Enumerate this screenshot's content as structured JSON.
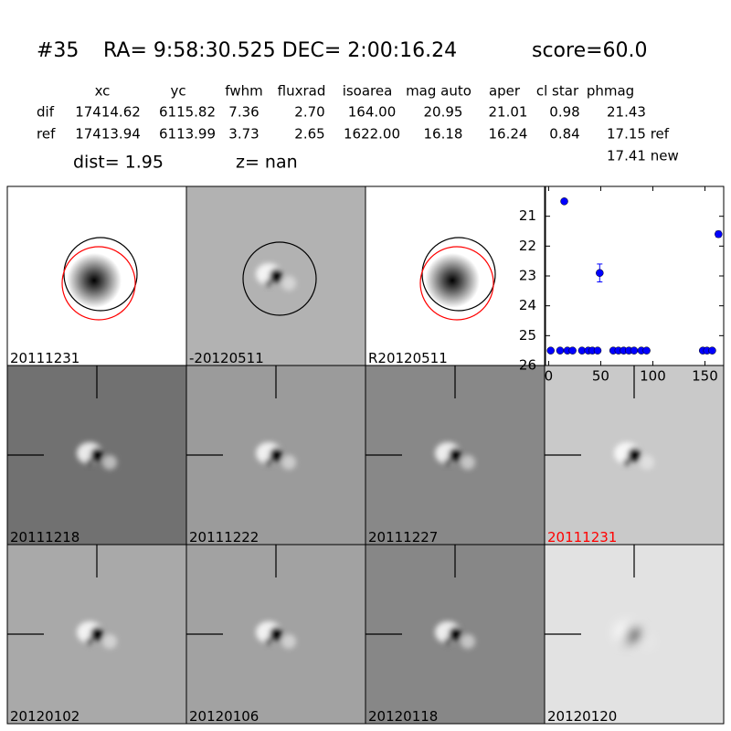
{
  "header": {
    "id": "#35",
    "coords": "RA= 9:58:30.525 DEC= 2:00:16.24",
    "score": "score=60.0"
  },
  "table": {
    "columns": [
      "xc",
      "yc",
      "fwhm",
      "fluxrad",
      "isoarea",
      "mag auto",
      "aper",
      "cl star",
      "phmag"
    ],
    "rows": [
      [
        "dif",
        "17414.62",
        "6115.82",
        "7.36",
        "2.70",
        "164.00",
        "20.95",
        "21.01",
        "0.98",
        "21.43"
      ],
      [
        "ref",
        "17413.94",
        "6113.99",
        "3.73",
        "2.65",
        "1622.00",
        "16.18",
        "16.24",
        "0.84",
        "17.15 ref"
      ]
    ],
    "extra": "17.41 new"
  },
  "dist": "dist=  1.95",
  "z": "z=   nan",
  "panels": [
    {
      "label": "20111231"
    },
    {
      "label": "-20120511"
    },
    {
      "label": "R20120511"
    },
    {
      "label": "20111218"
    },
    {
      "label": "20111222"
    },
    {
      "label": "20111227"
    },
    {
      "label": "20111231",
      "label_color": "#ff0000"
    },
    {
      "label": "20120102"
    },
    {
      "label": "20120106"
    },
    {
      "label": "20120118"
    },
    {
      "label": "20120120"
    }
  ],
  "chart_data": {
    "type": "scatter",
    "color": "#0000ff",
    "x": [
      2,
      11,
      15,
      18,
      23,
      32,
      38,
      42,
      47,
      49,
      62,
      67,
      72,
      77,
      82,
      89,
      94,
      148,
      152,
      157,
      163
    ],
    "values": [
      25.5,
      25.5,
      20.5,
      25.5,
      25.5,
      25.5,
      25.5,
      25.5,
      25.5,
      22.9,
      25.5,
      25.5,
      25.5,
      25.5,
      25.5,
      25.5,
      25.5,
      25.5,
      25.5,
      25.5,
      21.6
    ],
    "errors": [
      null,
      null,
      null,
      null,
      null,
      null,
      null,
      null,
      null,
      0.3,
      null,
      null,
      null,
      null,
      null,
      null,
      null,
      null,
      null,
      null,
      0.1
    ],
    "xlim": [
      -3,
      168
    ],
    "ylim": [
      20,
      26
    ],
    "y_inverted": true,
    "xticks": [
      0,
      50,
      100,
      150
    ],
    "yticks": [
      21,
      22,
      23,
      24,
      25,
      26
    ]
  }
}
